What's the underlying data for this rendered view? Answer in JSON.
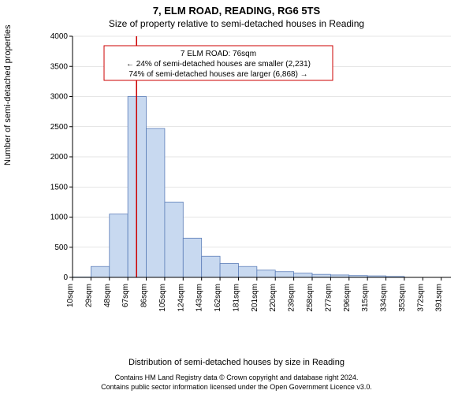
{
  "title_main": "7, ELM ROAD, READING, RG6 5TS",
  "title_sub": "Size of property relative to semi-detached houses in Reading",
  "ylabel": "Number of semi-detached properties",
  "xlabel": "Distribution of semi-detached houses by size in Reading",
  "footer1": "Contains HM Land Registry data © Crown copyright and database right 2024.",
  "footer2": "Contains public sector information licensed under the Open Government Licence v3.0.",
  "annotation": {
    "line1": "7 ELM ROAD: 76sqm",
    "line2": "← 24% of semi-detached houses are smaller (2,231)",
    "line3": "74% of semi-detached houses are larger (6,868) →",
    "border_color": "#cc0000",
    "bg_color": "#ffffff",
    "font_size": 10
  },
  "chart": {
    "type": "histogram",
    "plot_bg": "#ffffff",
    "axis_color": "#000000",
    "grid_color": "#cccccc",
    "bar_fill": "#c8d9f0",
    "bar_stroke": "#5b7db8",
    "marker_line_color": "#cc0000",
    "marker_x_value": 76,
    "y_min": 0,
    "y_max": 4000,
    "y_tick_step": 500,
    "y_tick_fontsize": 10,
    "x_min": 10,
    "x_max": 400,
    "x_tick_step": 19,
    "x_tick_labels": [
      "10sqm",
      "29sqm",
      "48sqm",
      "67sqm",
      "86sqm",
      "105sqm",
      "124sqm",
      "143sqm",
      "162sqm",
      "181sqm",
      "201sqm",
      "220sqm",
      "239sqm",
      "258sqm",
      "277sqm",
      "296sqm",
      "315sqm",
      "334sqm",
      "353sqm",
      "372sqm",
      "391sqm"
    ],
    "x_tick_fontsize": 10,
    "bin_start": 10,
    "bin_width": 19,
    "values": [
      5,
      180,
      1050,
      3000,
      2470,
      1250,
      650,
      350,
      230,
      180,
      120,
      95,
      70,
      50,
      40,
      30,
      25,
      15,
      0,
      0,
      0
    ]
  }
}
